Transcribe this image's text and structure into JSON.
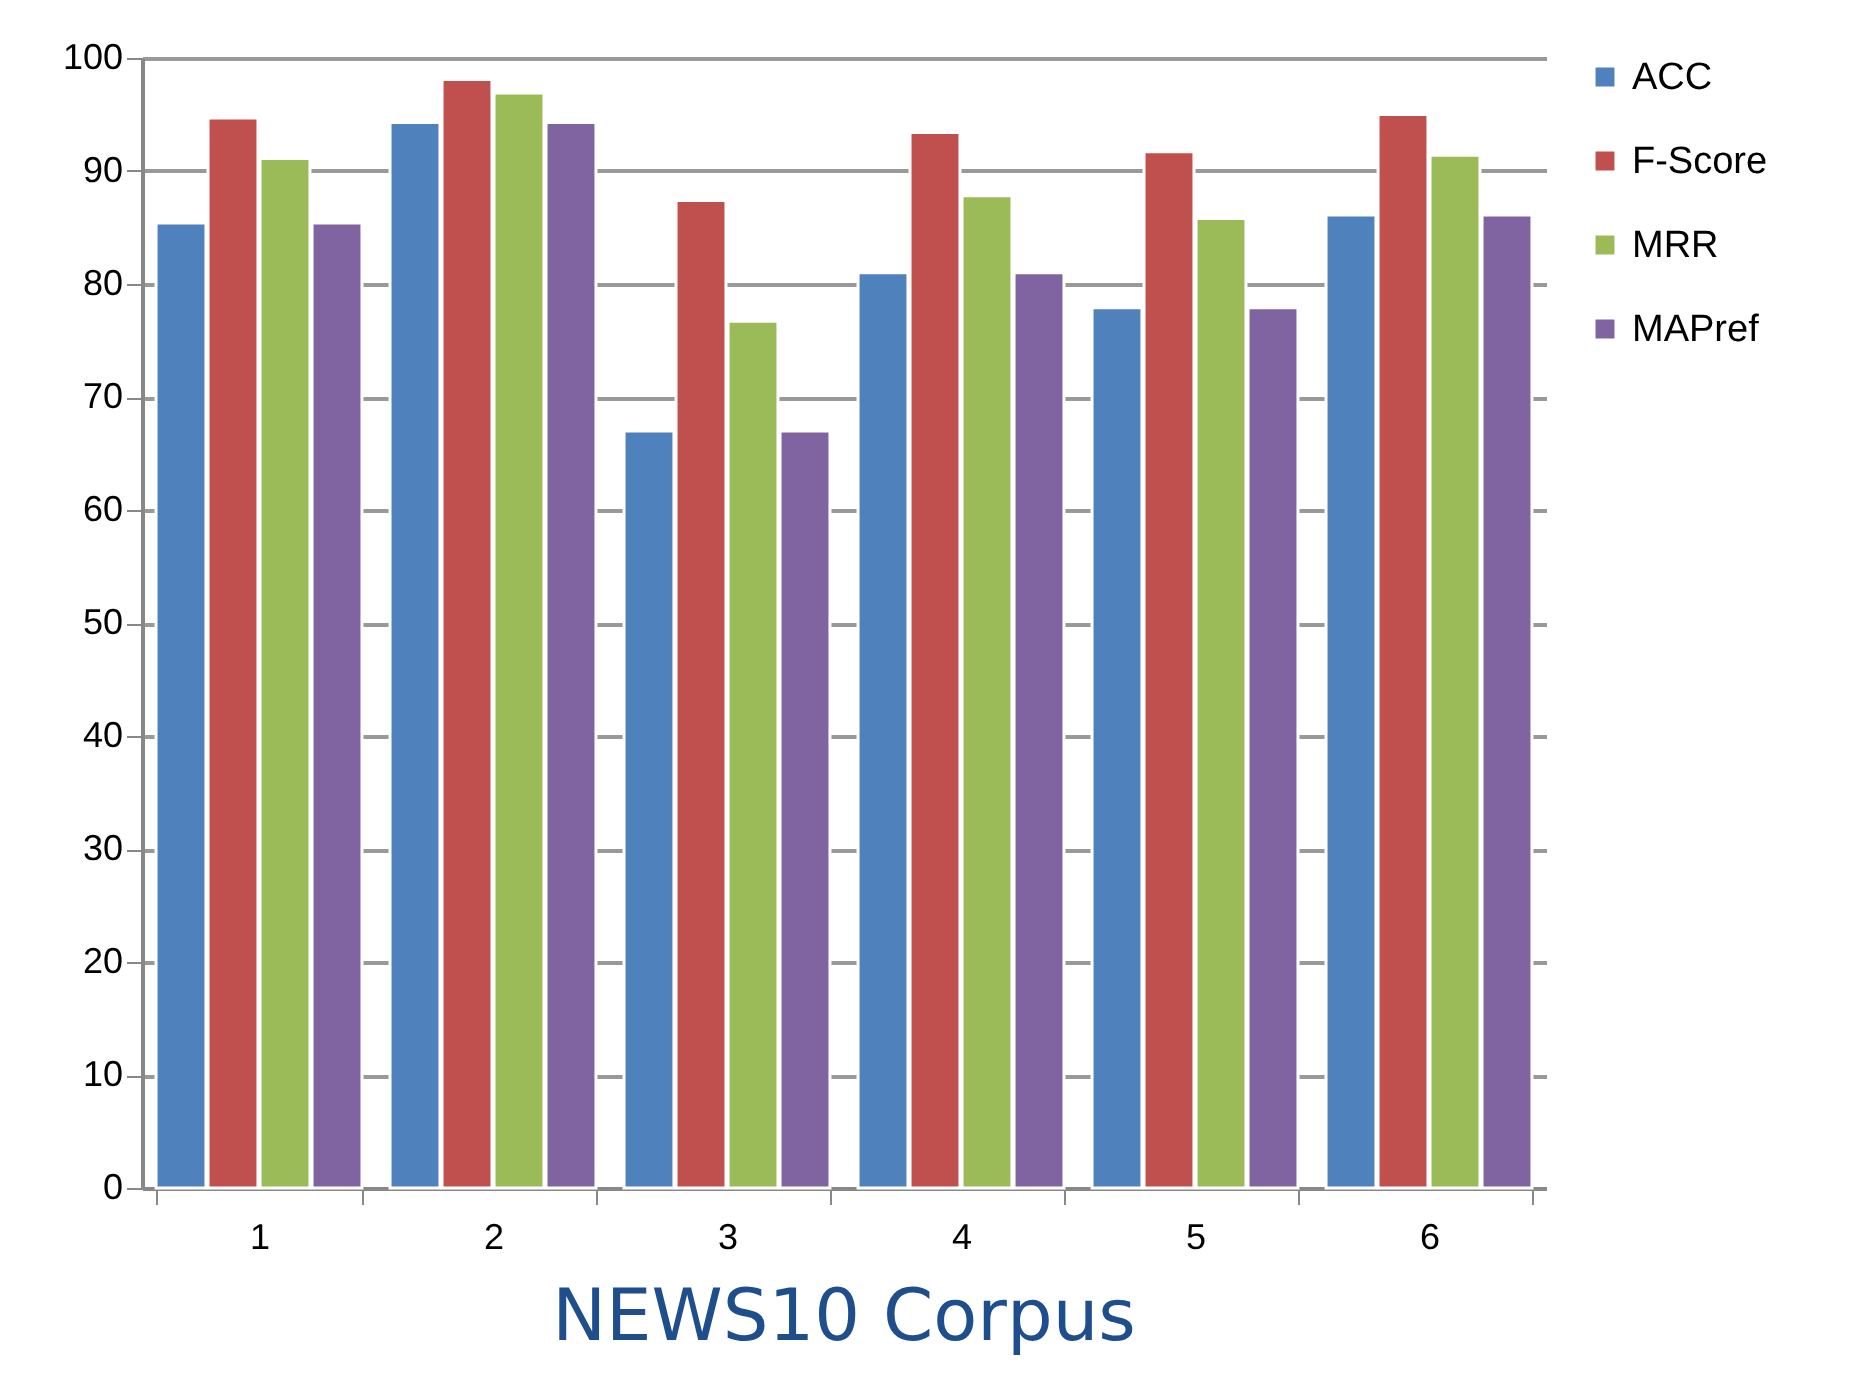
{
  "chart_data": {
    "type": "bar",
    "title": "NEWS10 Corpus",
    "categories": [
      "1",
      "2",
      "3",
      "4",
      "5",
      "6"
    ],
    "series": [
      {
        "name": "ACC",
        "color": "#4f81bd",
        "values": [
          85.4,
          94.3,
          67,
          81,
          77.9,
          86.1
        ]
      },
      {
        "name": "F-Score",
        "color": "#c0504d",
        "values": [
          94.7,
          98.1,
          87.4,
          93.4,
          91.7,
          95
        ]
      },
      {
        "name": "MRR",
        "color": "#9bbb59",
        "values": [
          91.1,
          96.9,
          76.7,
          87.8,
          85.8,
          91.4
        ]
      },
      {
        "name": "MAPref",
        "color": "#8064a2",
        "values": [
          85.4,
          94.3,
          67,
          81,
          77.9,
          86.1
        ]
      }
    ],
    "ylim": [
      0,
      100
    ],
    "yticks": [
      0,
      10,
      20,
      30,
      40,
      50,
      60,
      70,
      80,
      90,
      100
    ],
    "grid": "y",
    "legend": "right"
  }
}
